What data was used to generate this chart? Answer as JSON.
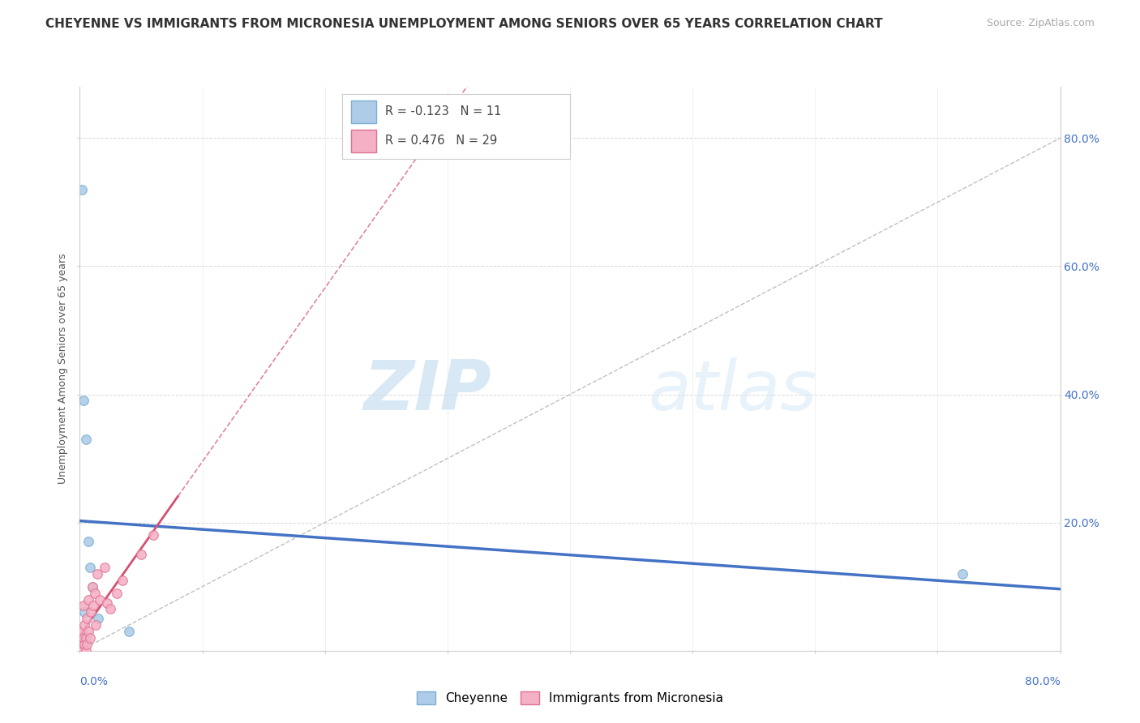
{
  "title": "CHEYENNE VS IMMIGRANTS FROM MICRONESIA UNEMPLOYMENT AMONG SENIORS OVER 65 YEARS CORRELATION CHART",
  "source": "Source: ZipAtlas.com",
  "ylabel": "Unemployment Among Seniors over 65 years",
  "xlim": [
    0.0,
    0.8
  ],
  "ylim": [
    0.0,
    0.88
  ],
  "yticks": [
    0.0,
    0.2,
    0.4,
    0.6,
    0.8
  ],
  "ytick_labels": [
    "",
    "20.0%",
    "40.0%",
    "60.0%",
    "80.0%"
  ],
  "cheyenne_color": "#aecce8",
  "cheyenne_edge": "#7aafd4",
  "micronesia_color": "#f4b0c4",
  "micronesia_edge": "#e07090",
  "trend_cheyenne_color": "#4472c4",
  "trend_micronesia_color": "#d45070",
  "legend_R_cheyenne": "-0.123",
  "legend_N_cheyenne": "11",
  "legend_R_micronesia": "0.476",
  "legend_N_micronesia": "29",
  "cheyenne_x": [
    0.002,
    0.003,
    0.005,
    0.007,
    0.008,
    0.01,
    0.015,
    0.72,
    0.04,
    0.002,
    0.004
  ],
  "cheyenne_y": [
    0.02,
    0.39,
    0.33,
    0.17,
    0.13,
    0.1,
    0.05,
    0.12,
    0.03,
    0.72,
    0.06
  ],
  "micronesia_x": [
    0.0,
    0.001,
    0.002,
    0.002,
    0.003,
    0.003,
    0.004,
    0.004,
    0.005,
    0.005,
    0.006,
    0.006,
    0.007,
    0.007,
    0.008,
    0.009,
    0.01,
    0.011,
    0.012,
    0.013,
    0.014,
    0.016,
    0.02,
    0.022,
    0.025,
    0.03,
    0.035,
    0.05,
    0.06
  ],
  "micronesia_y": [
    0.0,
    0.01,
    0.0,
    0.03,
    0.02,
    0.07,
    0.01,
    0.04,
    0.0,
    0.02,
    0.01,
    0.05,
    0.03,
    0.08,
    0.02,
    0.06,
    0.1,
    0.07,
    0.09,
    0.04,
    0.12,
    0.08,
    0.13,
    0.075,
    0.065,
    0.09,
    0.11,
    0.15,
    0.18
  ],
  "watermark_zip": "ZIP",
  "watermark_atlas": "atlas",
  "background_color": "#ffffff",
  "grid_color": "#d0d0d0",
  "marker_size": 70,
  "title_fontsize": 11,
  "axis_label_fontsize": 9,
  "tick_fontsize": 10,
  "legend_fontsize": 11
}
